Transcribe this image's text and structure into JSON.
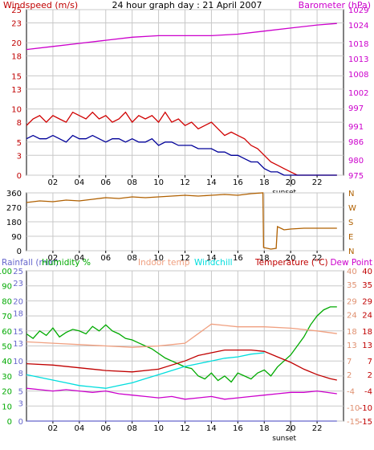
{
  "page": {
    "title": "24 hour graph day : 21 April 2007"
  },
  "chart_data": [
    {
      "type": "line",
      "panel": "wind-barometer",
      "labels": {
        "left": "Windspeed (m/s)",
        "right": "Barometer (hPa)"
      },
      "x_ticks": [
        "02",
        "04",
        "06",
        "08",
        "10",
        "12",
        "14",
        "16",
        "18",
        "20",
        "22"
      ],
      "x_range": [
        0,
        24
      ],
      "sunset_label": "sunset",
      "sunset_hour": 20.0,
      "left_axis": {
        "range": [
          0,
          25
        ],
        "ticks": [
          0,
          3,
          5,
          8,
          10,
          13,
          15,
          18,
          20,
          23,
          25
        ]
      },
      "right_axis": {
        "range": [
          975,
          1029
        ],
        "ticks": [
          975,
          980,
          986,
          991,
          997,
          1002,
          1008,
          1013,
          1018,
          1024,
          1029
        ]
      },
      "grid": true,
      "colors": {
        "left_labels": "#c00000",
        "right_labels": "#cc00cc"
      },
      "series": [
        {
          "name": "Windspeed (m/s)",
          "axis": "left",
          "color": "#d00000",
          "x": [
            0.0,
            0.5,
            1.0,
            1.5,
            2.0,
            2.5,
            3.0,
            3.5,
            4.0,
            4.5,
            5.0,
            5.5,
            6.0,
            6.5,
            7.0,
            7.5,
            8.0,
            8.5,
            9.0,
            9.5,
            10.0,
            10.5,
            11.0,
            11.5,
            12.0,
            12.5,
            13.0,
            13.5,
            14.0,
            14.5,
            15.0,
            15.5,
            16.0,
            16.5,
            17.0,
            17.5,
            18.0,
            18.5,
            19.0,
            19.5,
            20.0,
            20.5,
            21.0,
            21.5,
            22.0,
            22.5,
            23.0,
            23.5
          ],
          "values": [
            7.5,
            8.5,
            9.0,
            8.0,
            9.0,
            8.5,
            8.0,
            9.5,
            9.0,
            8.5,
            9.5,
            8.5,
            9.0,
            8.0,
            8.5,
            9.5,
            8.0,
            9.0,
            8.5,
            9.0,
            8.0,
            9.5,
            8.0,
            8.5,
            7.5,
            8.0,
            7.0,
            7.5,
            8.0,
            7.0,
            6.0,
            6.5,
            6.0,
            5.5,
            4.5,
            4.0,
            3.0,
            2.0,
            1.5,
            1.0,
            0.5,
            0.0,
            0.0,
            0.0,
            0.0,
            0.0,
            0.0,
            0.0
          ]
        },
        {
          "name": "Wind gust",
          "axis": "left",
          "color": "#000099",
          "x": [
            0.0,
            0.5,
            1.0,
            1.5,
            2.0,
            2.5,
            3.0,
            3.5,
            4.0,
            4.5,
            5.0,
            5.5,
            6.0,
            6.5,
            7.0,
            7.5,
            8.0,
            8.5,
            9.0,
            9.5,
            10.0,
            10.5,
            11.0,
            11.5,
            12.0,
            12.5,
            13.0,
            13.5,
            14.0,
            14.5,
            15.0,
            15.5,
            16.0,
            16.5,
            17.0,
            17.5,
            18.0,
            18.5,
            19.0,
            19.5,
            20.0,
            20.5,
            21.0,
            21.5,
            22.0,
            22.5,
            23.0,
            23.5
          ],
          "values": [
            5.5,
            6.0,
            5.5,
            5.5,
            6.0,
            5.5,
            5.0,
            6.0,
            5.5,
            5.5,
            6.0,
            5.5,
            5.0,
            5.5,
            5.5,
            5.0,
            5.5,
            5.0,
            5.0,
            5.5,
            4.5,
            5.0,
            5.0,
            4.5,
            4.5,
            4.5,
            4.0,
            4.0,
            4.0,
            3.5,
            3.5,
            3.0,
            3.0,
            2.5,
            2.0,
            2.0,
            1.0,
            0.5,
            0.5,
            0.0,
            0.0,
            0.0,
            0.0,
            0.0,
            0.0,
            0.0,
            0.0,
            0.0
          ]
        },
        {
          "name": "Barometer (hPa)",
          "axis": "right",
          "color": "#cc00cc",
          "x": [
            0,
            2,
            4,
            6,
            8,
            10,
            12,
            14,
            16,
            18,
            20,
            22,
            23.5
          ],
          "values": [
            1016.0,
            1017.0,
            1018.0,
            1019.0,
            1020.0,
            1020.5,
            1020.5,
            1020.5,
            1021.0,
            1022.0,
            1023.0,
            1024.0,
            1024.5
          ]
        }
      ]
    },
    {
      "type": "line",
      "panel": "wind-direction",
      "x_ticks": [
        "02",
        "04",
        "06",
        "08",
        "10",
        "12",
        "14",
        "16",
        "18",
        "20",
        "22"
      ],
      "x_range": [
        0,
        24
      ],
      "left_axis": {
        "range": [
          0,
          360
        ],
        "ticks": [
          0,
          90,
          180,
          270,
          360
        ]
      },
      "right_axis_labels": [
        "N",
        "E",
        "S",
        "W",
        "N"
      ],
      "grid": true,
      "series": [
        {
          "name": "Wind direction",
          "color": "#b06000",
          "x": [
            0.0,
            1.0,
            2.0,
            3.0,
            4.0,
            5.0,
            6.0,
            7.0,
            8.0,
            9.0,
            10.0,
            11.0,
            12.0,
            13.0,
            14.0,
            15.0,
            16.0,
            17.0,
            17.9,
            17.95,
            18.5,
            18.9,
            19.0,
            19.5,
            20.0,
            21.0,
            22.0,
            23.5
          ],
          "values": [
            300,
            310,
            305,
            315,
            310,
            320,
            330,
            325,
            335,
            330,
            335,
            340,
            345,
            340,
            345,
            350,
            345,
            355,
            360,
            20,
            10,
            15,
            150,
            130,
            135,
            140,
            140,
            140
          ]
        }
      ]
    },
    {
      "type": "line",
      "panel": "temperature-humidity",
      "x_ticks": [
        "02",
        "04",
        "06",
        "08",
        "10",
        "12",
        "14",
        "16",
        "18",
        "20",
        "22"
      ],
      "x_range": [
        0,
        24
      ],
      "sunset_label": "sunset",
      "sunset_hour": 20.0,
      "legend": {
        "rainfall": "Rainfall (mm)",
        "humidity": "Humidity %",
        "indoor": "Indoor temp",
        "windchill": "Windchill",
        "temperature": "Temperature (°C)",
        "dewpoint": "Dew Point"
      },
      "axis_rainfall": {
        "range": [
          0,
          25
        ],
        "ticks": [
          0,
          3,
          5,
          8,
          10,
          13,
          15,
          18,
          20,
          23,
          25
        ]
      },
      "axis_humidity": {
        "range": [
          0,
          100
        ],
        "ticks": [
          0,
          10,
          20,
          30,
          40,
          50,
          60,
          70,
          80,
          90,
          100
        ]
      },
      "axis_indoor": {
        "range": [
          -15,
          40
        ],
        "ticks": [
          -15,
          -10,
          -4,
          2,
          7,
          13,
          18,
          24,
          29,
          35,
          40
        ]
      },
      "axis_temperature": {
        "range": [
          -15,
          40
        ],
        "ticks": [
          -15,
          -10,
          -4,
          2,
          7,
          13,
          18,
          24,
          29,
          35,
          40
        ]
      },
      "grid": true,
      "colors": {
        "rainfall": "#6666cc",
        "humidity": "#00aa00",
        "indoor": "#f0a080",
        "windchill": "#00dddd",
        "temperature": "#c00000",
        "dewpoint": "#cc00cc",
        "axis_indoor": "#e09070",
        "axis_temperature": "#c00000"
      },
      "series": [
        {
          "name": "Humidity %",
          "axis": "humidity",
          "color": "#00aa00",
          "x": [
            0.0,
            0.5,
            1.0,
            1.5,
            2.0,
            2.5,
            3.0,
            3.5,
            4.0,
            4.5,
            5.0,
            5.5,
            6.0,
            6.5,
            7.0,
            7.5,
            8.0,
            8.5,
            9.0,
            9.5,
            10.0,
            10.5,
            11.0,
            11.5,
            12.0,
            12.5,
            13.0,
            13.5,
            14.0,
            14.5,
            15.0,
            15.5,
            16.0,
            16.5,
            17.0,
            17.5,
            18.0,
            18.5,
            19.0,
            19.5,
            20.0,
            20.5,
            21.0,
            21.5,
            22.0,
            22.5,
            23.0,
            23.5
          ],
          "values": [
            58,
            55,
            60,
            57,
            62,
            56,
            59,
            61,
            60,
            58,
            63,
            60,
            64,
            60,
            58,
            55,
            54,
            52,
            50,
            48,
            45,
            42,
            40,
            38,
            36,
            35,
            30,
            28,
            32,
            27,
            30,
            26,
            32,
            30,
            28,
            32,
            34,
            30,
            36,
            40,
            44,
            50,
            56,
            64,
            70,
            74,
            76,
            76
          ]
        },
        {
          "name": "Indoor temp",
          "axis": "indoor",
          "color": "#f0a080",
          "x": [
            0,
            2,
            4,
            6,
            8,
            10,
            11,
            12,
            13,
            14,
            15,
            16,
            18,
            20,
            22,
            23.5
          ],
          "values": [
            14.0,
            13.5,
            13.0,
            12.5,
            12.0,
            12.5,
            13.0,
            13.5,
            17.0,
            20.5,
            20.0,
            19.5,
            19.5,
            19.0,
            18.0,
            17.0
          ]
        },
        {
          "name": "Windchill",
          "axis": "temperature",
          "color": "#00dddd",
          "x": [
            0.0,
            1.0,
            2.0,
            3.0,
            4.0,
            5.0,
            6.0,
            7.0,
            8.0,
            9.0,
            10.0,
            11.0,
            12.0,
            13.0,
            14.0,
            15.0,
            16.0,
            17.0,
            18.0
          ],
          "values": [
            2.0,
            1.0,
            0.0,
            -1.0,
            -2.0,
            -2.5,
            -3.0,
            -2.0,
            -1.0,
            0.5,
            2.0,
            3.5,
            5.0,
            6.0,
            7.0,
            8.0,
            8.5,
            9.5,
            10.0
          ]
        },
        {
          "name": "Temperature (°C)",
          "axis": "temperature",
          "color": "#c00000",
          "x": [
            0,
            2,
            4,
            6,
            8,
            10,
            12,
            13,
            14,
            15,
            16,
            17,
            18,
            19,
            20,
            21,
            22,
            23,
            23.5
          ],
          "values": [
            6.0,
            5.5,
            4.5,
            3.5,
            3.0,
            4.0,
            7.0,
            9.0,
            10.0,
            11.0,
            11.0,
            11.0,
            10.5,
            8.5,
            6.5,
            4.0,
            2.0,
            0.5,
            0.0
          ]
        },
        {
          "name": "Dew Point",
          "axis": "temperature",
          "color": "#cc00cc",
          "x": [
            0.0,
            1.0,
            2.0,
            3.0,
            4.0,
            5.0,
            6.0,
            7.0,
            8.0,
            9.0,
            10.0,
            11.0,
            12.0,
            13.0,
            14.0,
            15.0,
            16.0,
            17.0,
            18.0,
            19.0,
            20.0,
            21.0,
            22.0,
            23.5
          ],
          "values": [
            -3.0,
            -3.5,
            -4.0,
            -3.5,
            -4.0,
            -4.5,
            -4.0,
            -5.0,
            -5.5,
            -6.0,
            -6.5,
            -6.0,
            -7.0,
            -6.5,
            -6.0,
            -7.0,
            -6.5,
            -6.0,
            -5.5,
            -5.0,
            -4.5,
            -4.5,
            -4.0,
            -5.0
          ]
        },
        {
          "name": "Rainfall (mm)",
          "axis": "rainfall",
          "color": "#6666cc",
          "x": [
            0,
            23.5
          ],
          "values": [
            0,
            0
          ]
        }
      ]
    }
  ]
}
